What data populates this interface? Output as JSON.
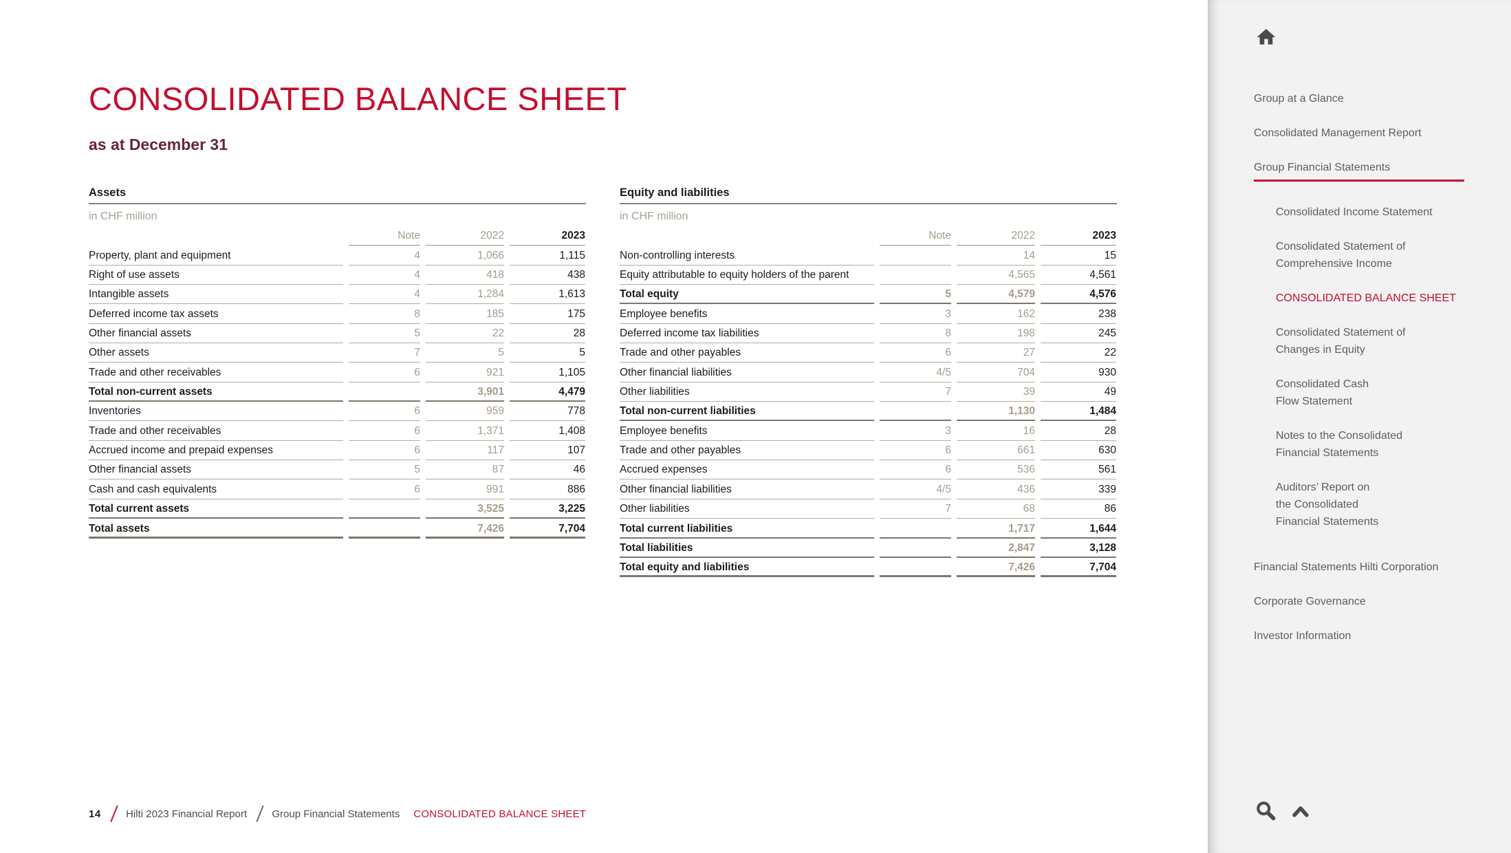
{
  "header": {
    "title": "CONSOLIDATED BALANCE SHEET",
    "subtitle": "as at December 31"
  },
  "tables": {
    "assets": {
      "section": "Assets",
      "unit": "in CHF million",
      "columns": [
        "Note",
        "2022",
        "2023"
      ],
      "rows": [
        {
          "label": "Property, plant and equipment",
          "note": "4",
          "y2022": "1,066",
          "y2023": "1,115",
          "style": "normal"
        },
        {
          "label": "Right of use assets",
          "note": "4",
          "y2022": "418",
          "y2023": "438",
          "style": "normal"
        },
        {
          "label": "Intangible assets",
          "note": "4",
          "y2022": "1,284",
          "y2023": "1,613",
          "style": "normal"
        },
        {
          "label": "Deferred income tax assets",
          "note": "8",
          "y2022": "185",
          "y2023": "175",
          "style": "normal"
        },
        {
          "label": "Other financial assets",
          "note": "5",
          "y2022": "22",
          "y2023": "28",
          "style": "normal"
        },
        {
          "label": "Other assets",
          "note": "7",
          "y2022": "5",
          "y2023": "5",
          "style": "normal"
        },
        {
          "label": "Trade and other receivables",
          "note": "6",
          "y2022": "921",
          "y2023": "1,105",
          "style": "normal"
        },
        {
          "label": "Total non-current assets",
          "note": "",
          "y2022": "3,901",
          "y2023": "4,479",
          "style": "total"
        },
        {
          "label": "Inventories",
          "note": "6",
          "y2022": "959",
          "y2023": "778",
          "style": "normal"
        },
        {
          "label": "Trade and other receivables",
          "note": "6",
          "y2022": "1,371",
          "y2023": "1,408",
          "style": "normal"
        },
        {
          "label": "Accrued income and prepaid expenses",
          "note": "6",
          "y2022": "117",
          "y2023": "107",
          "style": "normal"
        },
        {
          "label": "Other financial assets",
          "note": "5",
          "y2022": "87",
          "y2023": "46",
          "style": "normal"
        },
        {
          "label": "Cash and cash equivalents",
          "note": "6",
          "y2022": "991",
          "y2023": "886",
          "style": "normal"
        },
        {
          "label": "Total current assets",
          "note": "",
          "y2022": "3,525",
          "y2023": "3,225",
          "style": "total"
        },
        {
          "label": "Total assets",
          "note": "",
          "y2022": "7,426",
          "y2023": "7,704",
          "style": "grand"
        }
      ]
    },
    "equity": {
      "section": "Equity and liabilities",
      "unit": "in CHF million",
      "columns": [
        "Note",
        "2022",
        "2023"
      ],
      "rows": [
        {
          "label": "Non-controlling interests",
          "note": "",
          "y2022": "14",
          "y2023": "15",
          "style": "normal"
        },
        {
          "label": "Equity attributable to equity holders of the parent",
          "note": "",
          "y2022": "4,565",
          "y2023": "4,561",
          "style": "normal"
        },
        {
          "label": "Total equity",
          "note": "5",
          "y2022": "4,579",
          "y2023": "4,576",
          "style": "total"
        },
        {
          "label": "Employee benefits",
          "note": "3",
          "y2022": "162",
          "y2023": "238",
          "style": "normal"
        },
        {
          "label": "Deferred income tax liabilities",
          "note": "8",
          "y2022": "198",
          "y2023": "245",
          "style": "normal"
        },
        {
          "label": "Trade and other payables",
          "note": "6",
          "y2022": "27",
          "y2023": "22",
          "style": "normal"
        },
        {
          "label": "Other financial liabilities",
          "note": "4/5",
          "y2022": "704",
          "y2023": "930",
          "style": "normal"
        },
        {
          "label": "Other liabilities",
          "note": "7",
          "y2022": "39",
          "y2023": "49",
          "style": "normal"
        },
        {
          "label": "Total non-current liabilities",
          "note": "",
          "y2022": "1,130",
          "y2023": "1,484",
          "style": "total"
        },
        {
          "label": "Employee benefits",
          "note": "3",
          "y2022": "16",
          "y2023": "28",
          "style": "normal"
        },
        {
          "label": "Trade and other payables",
          "note": "6",
          "y2022": "661",
          "y2023": "630",
          "style": "normal"
        },
        {
          "label": "Accrued expenses",
          "note": "6",
          "y2022": "536",
          "y2023": "561",
          "style": "normal"
        },
        {
          "label": "Other financial liabilities",
          "note": "4/5",
          "y2022": "436",
          "y2023": "339",
          "style": "normal"
        },
        {
          "label": "Other liabilities",
          "note": "7",
          "y2022": "68",
          "y2023": "86",
          "style": "normal"
        },
        {
          "label": "Total current liabilities",
          "note": "",
          "y2022": "1,717",
          "y2023": "1,644",
          "style": "total"
        },
        {
          "label": "Total liabilities",
          "note": "",
          "y2022": "2,847",
          "y2023": "3,128",
          "style": "total"
        },
        {
          "label": "Total equity and liabilities",
          "note": "",
          "y2022": "7,426",
          "y2023": "7,704",
          "style": "grand"
        }
      ]
    }
  },
  "sidebar": {
    "icons": {
      "home": "home-icon",
      "search": "search-icon",
      "scroll_top": "chevron-up-icon"
    },
    "items": [
      {
        "label": "Group at a Glance",
        "level": 1
      },
      {
        "label": "Consolidated Management Report",
        "level": 1
      },
      {
        "label": "Group Financial Statements",
        "level": 1,
        "current": true
      },
      {
        "label": "Consolidated Income Statement",
        "level": 2
      },
      {
        "label": "Consolidated Statement of\nComprehensive Income",
        "level": 2
      },
      {
        "label": "CONSOLIDATED BALANCE SHEET",
        "level": 2,
        "active": true
      },
      {
        "label": "Consolidated Statement of\nChanges in Equity",
        "level": 2
      },
      {
        "label": "Consolidated Cash\nFlow Statement",
        "level": 2
      },
      {
        "label": "Notes to the Consolidated\nFinancial Statements",
        "level": 2
      },
      {
        "label": "Auditors’ Report on\nthe Consolidated\nFinancial Statements",
        "level": 2
      },
      {
        "label": "Financial Statements Hilti Corporation",
        "level": 1
      },
      {
        "label": "Corporate Governance",
        "level": 1
      },
      {
        "label": "Investor Information",
        "level": 1
      }
    ]
  },
  "footer": {
    "page_number": "14",
    "report": "Hilti 2023 Financial Report",
    "section": "Group Financial Statements",
    "page": "CONSOLIDATED BALANCE SHEET"
  },
  "colors": {
    "accent_red": "#c30f2e",
    "subtitle_maroon": "#692438",
    "taupe_text": "#a59c8c",
    "rule": "#b3ac9e",
    "rule_dark": "#7e7769",
    "sidebar_bg": "#f3f2f2",
    "sidebar_text": "#5e5e5e"
  }
}
